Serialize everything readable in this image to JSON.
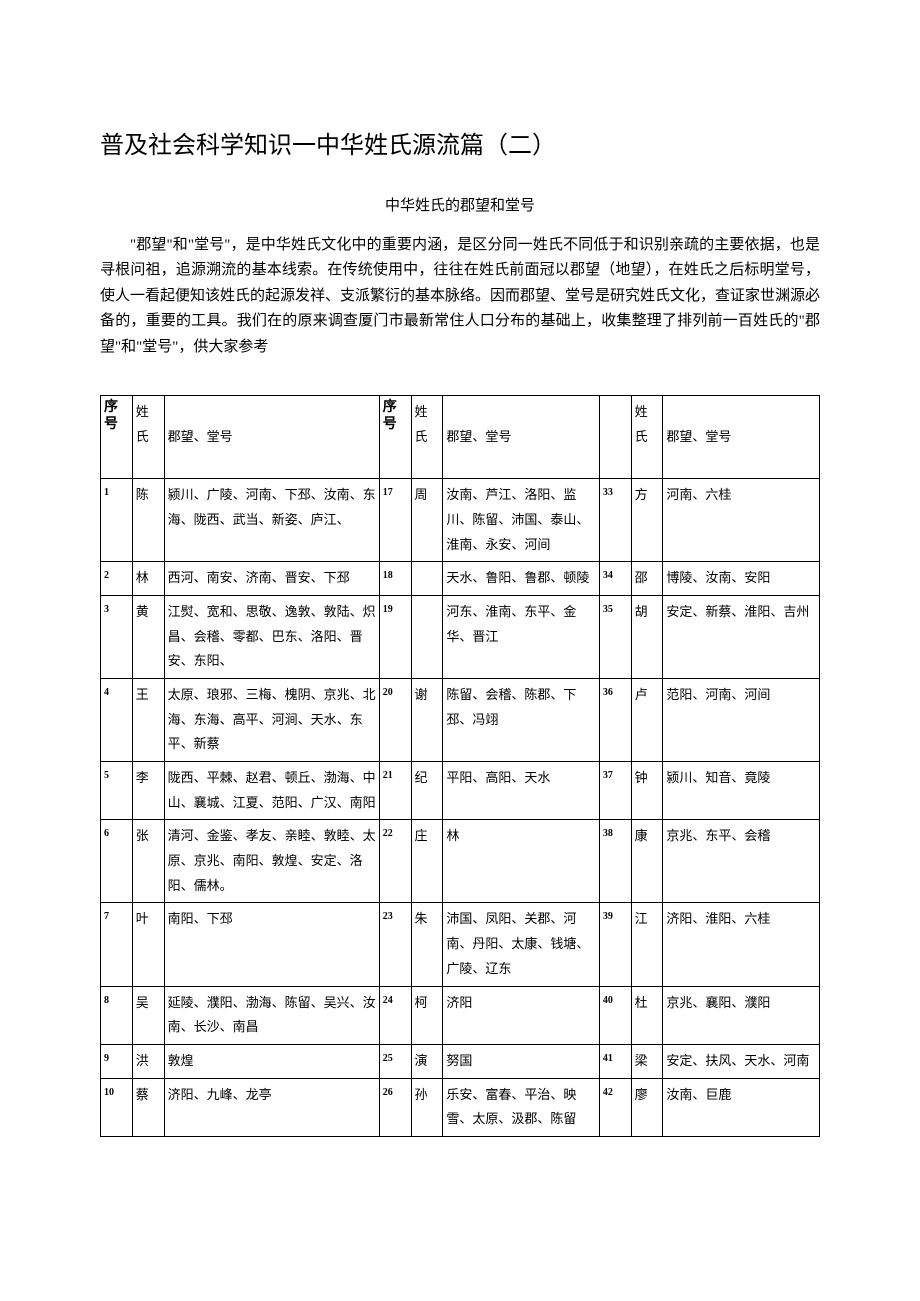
{
  "title": "普及社会科学知识一中华姓氏源流篇（二）",
  "subtitle": "中华姓氏的郡望和堂号",
  "intro": "\"郡望\"和\"堂号\"，是中华姓氏文化中的重要内涵，是区分同一姓氏不同低于和识别亲疏的主要依据，也是寻根问祖，追源溯流的基本线索。在传统使用中，往往在姓氏前面冠以郡望（地望），在姓氏之后标明堂号，使人一看起便知该姓氏的起源发祥、支派繁衍的基本脉络。因而郡望、堂号是研究姓氏文化，查证家世渊源必备的，重要的工具。我们在的原来调查厦门市最新常住人口分布的基础上，收集整理了排列前一百姓氏的\"郡望\"和\"堂号\"，供大家参考",
  "headers": {
    "seq": "序号",
    "surname": "姓氏",
    "surname_short": "姓",
    "shi": "氏",
    "detail": "郡望、堂号"
  },
  "rows": [
    {
      "a_seq": "1",
      "a_name": "陈",
      "a_detail": "颍川、广陵、河南、下邳、汝南、东海、陇西、武当、新姿、庐江、",
      "b_seq": "17",
      "b_name": "周",
      "b_detail": "汝南、芦江、洛阳、监川、陈留、沛国、泰山、淮南、永安、河间",
      "c_seq": "33",
      "c_name": "方",
      "c_detail": "河南、六桂"
    },
    {
      "a_seq": "2",
      "a_name": "林",
      "a_detail": "西河、南安、济南、晋安、下邳",
      "b_seq": "18",
      "b_name": "",
      "b_detail": "天水、鲁阳、鲁郡、顿陵",
      "c_seq": "34",
      "c_name": "邵",
      "c_detail": "博陵、汝南、安阳"
    },
    {
      "a_seq": "3",
      "a_name": "黄",
      "a_detail": "江熨、宽和、思敬、逸敦、敦陆、炽昌、会稽、零都、巴东、洛阳、晋安、东阳、",
      "b_seq": "19",
      "b_name": "",
      "b_detail": "河东、淮南、东平、金华、晋江",
      "c_seq": "35",
      "c_name": "胡",
      "c_detail": "安定、新蔡、淮阳、吉州"
    },
    {
      "a_seq": "4",
      "a_name": "王",
      "a_detail": "太原、琅邪、三梅、槐阴、京兆、北海、东海、高平、河涧、天水、东平、新蔡",
      "b_seq": "20",
      "b_name": "谢",
      "b_detail": "陈留、会稽、陈郡、下邳、冯翊",
      "c_seq": "36",
      "c_name": "卢",
      "c_detail": "范阳、河南、河间"
    },
    {
      "a_seq": "5",
      "a_name": "李",
      "a_detail": "陇西、平棘、赵君、顿丘、渤海、中山、襄城、江夏、范阳、广汉、南阳",
      "b_seq": "21",
      "b_name": "纪",
      "b_detail": "平阳、高阳、天水",
      "c_seq": "37",
      "c_name": "钟",
      "c_detail": "颍川、知音、竟陵"
    },
    {
      "a_seq": "6",
      "a_name": "张",
      "a_detail": "清河、金鉴、孝友、亲睦、敦睦、太原、京兆、南阳、敦煌、安定、洛阳、儒林。",
      "b_seq": "22",
      "b_name": "庄",
      "b_detail": "林",
      "c_seq": "38",
      "c_name": "康",
      "c_detail": "京兆、东平、会稽"
    },
    {
      "a_seq": "7",
      "a_name": "叶",
      "a_detail": "南阳、下邳",
      "b_seq": "23",
      "b_name": "朱",
      "b_detail": "沛国、凤阳、关郡、河南、丹阳、太康、钱塘、广陵、辽东",
      "c_seq": "39",
      "c_name": "江",
      "c_detail": "济阳、淮阳、六桂"
    },
    {
      "a_seq": "8",
      "a_name": "吴",
      "a_detail": "延陵、濮阳、渤海、陈留、吴兴、汝南、长沙、南昌",
      "b_seq": "24",
      "b_name": "柯",
      "b_detail": "济阳",
      "c_seq": "40",
      "c_name": "杜",
      "c_detail": "京兆、襄阳、濮阳"
    },
    {
      "a_seq": "9",
      "a_name": "洪",
      "a_detail": "敦煌",
      "b_seq": "25",
      "b_name": "演",
      "b_detail": "努国",
      "c_seq": "41",
      "c_name": "梁",
      "c_detail": "安定、扶风、天水、河南"
    },
    {
      "a_seq": "10",
      "a_name": "蔡",
      "a_detail": "济阳、九峰、龙亭",
      "b_seq": "26",
      "b_name": "孙",
      "b_detail": "乐安、富春、平治、映雪、太原、汲郡、陈留",
      "c_seq": "42",
      "c_name": "廖",
      "c_detail": "汝南、巨鹿"
    }
  ],
  "styling": {
    "body_width": 920,
    "body_height": 1301,
    "background_color": "#ffffff",
    "text_color": "#000000",
    "border_color": "#000000",
    "title_fontsize": 24,
    "subtitle_fontsize": 15,
    "intro_fontsize": 15,
    "table_fontsize": 13,
    "seq_fontsize": 10,
    "font_family": "SimSun"
  }
}
